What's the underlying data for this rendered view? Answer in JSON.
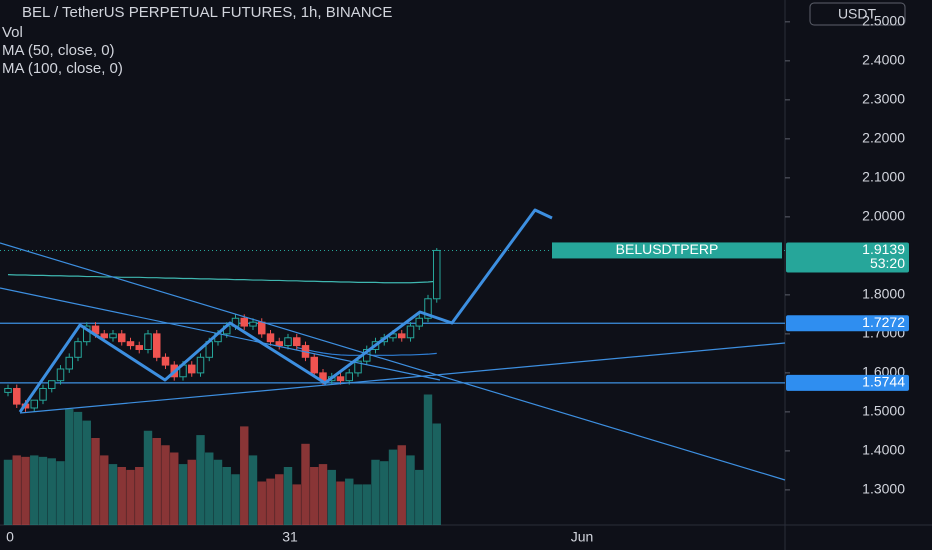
{
  "chart_data": {
    "type": "candlestick",
    "title": "BEL / TetherUS PERPETUAL FUTURES, 1h, BINANCE",
    "legend": [
      "Vol",
      "MA (50, close, 0)",
      "MA (100, close, 0)"
    ],
    "currency": "USDT",
    "symbol": "BELUSDTPERP",
    "countdown": "53:20",
    "xlabels": [
      "0",
      "31",
      "Jun"
    ],
    "up_color": "#26a69a",
    "down_color": "#ef5350",
    "ylim": [
      1.21,
      2.556
    ],
    "yticks": [
      {
        "value": 2.5,
        "label": "2.5000"
      },
      {
        "value": 2.4,
        "label": "2.4000"
      },
      {
        "value": 2.3,
        "label": "2.3000"
      },
      {
        "value": 2.2,
        "label": "2.2000"
      },
      {
        "value": 2.1,
        "label": "2.1000"
      },
      {
        "value": 2.0,
        "label": "2.0000"
      },
      {
        "value": 1.8,
        "label": "1.8000"
      },
      {
        "value": 1.7,
        "label": "1.7000"
      },
      {
        "value": 1.6,
        "label": "1.6000"
      },
      {
        "value": 1.5,
        "label": "1.5000"
      },
      {
        "value": 1.4,
        "label": "1.4000"
      },
      {
        "value": 1.3,
        "label": "1.3000"
      }
    ],
    "open": [
      1.55,
      1.56,
      1.52,
      1.51,
      1.53,
      1.56,
      1.58,
      1.61,
      1.64,
      1.68,
      1.72,
      1.7,
      1.69,
      1.7,
      1.68,
      1.67,
      1.66,
      1.7,
      1.64,
      1.62,
      1.59,
      1.62,
      1.6,
      1.64,
      1.68,
      1.7,
      1.72,
      1.74,
      1.72,
      1.73,
      1.7,
      1.68,
      1.67,
      1.69,
      1.67,
      1.64,
      1.6,
      1.58,
      1.59,
      1.58,
      1.6,
      1.63,
      1.66,
      1.68,
      1.69,
      1.7,
      1.69,
      1.72,
      1.74,
      1.79
    ],
    "high": [
      1.57,
      1.57,
      1.53,
      1.53,
      1.57,
      1.58,
      1.62,
      1.65,
      1.69,
      1.73,
      1.73,
      1.71,
      1.71,
      1.71,
      1.69,
      1.68,
      1.71,
      1.71,
      1.65,
      1.63,
      1.63,
      1.63,
      1.65,
      1.69,
      1.71,
      1.73,
      1.75,
      1.75,
      1.74,
      1.74,
      1.71,
      1.69,
      1.7,
      1.7,
      1.68,
      1.65,
      1.61,
      1.6,
      1.6,
      1.61,
      1.64,
      1.67,
      1.69,
      1.7,
      1.71,
      1.71,
      1.73,
      1.75,
      1.8,
      1.92
    ],
    "low": [
      1.54,
      1.51,
      1.5,
      1.5,
      1.52,
      1.55,
      1.57,
      1.6,
      1.63,
      1.67,
      1.69,
      1.68,
      1.68,
      1.67,
      1.66,
      1.65,
      1.65,
      1.63,
      1.61,
      1.58,
      1.58,
      1.59,
      1.59,
      1.63,
      1.67,
      1.69,
      1.71,
      1.71,
      1.71,
      1.69,
      1.67,
      1.66,
      1.66,
      1.66,
      1.63,
      1.59,
      1.57,
      1.57,
      1.57,
      1.57,
      1.59,
      1.62,
      1.65,
      1.67,
      1.68,
      1.68,
      1.68,
      1.71,
      1.73,
      1.78
    ],
    "close": [
      1.56,
      1.52,
      1.51,
      1.53,
      1.56,
      1.58,
      1.61,
      1.64,
      1.68,
      1.72,
      1.7,
      1.69,
      1.7,
      1.68,
      1.67,
      1.66,
      1.7,
      1.64,
      1.62,
      1.59,
      1.62,
      1.6,
      1.64,
      1.68,
      1.7,
      1.72,
      1.74,
      1.72,
      1.73,
      1.7,
      1.68,
      1.67,
      1.69,
      1.67,
      1.64,
      1.6,
      1.58,
      1.59,
      1.58,
      1.6,
      1.63,
      1.66,
      1.68,
      1.69,
      1.7,
      1.69,
      1.72,
      1.74,
      1.79,
      1.9139
    ],
    "volume": [
      45,
      48,
      47,
      48,
      47,
      46,
      44,
      80,
      78,
      72,
      60,
      48,
      42,
      40,
      38,
      40,
      65,
      60,
      55,
      50,
      42,
      45,
      62,
      50,
      45,
      40,
      35,
      68,
      48,
      30,
      32,
      35,
      40,
      28,
      56,
      40,
      42,
      38,
      30,
      32,
      28,
      28,
      45,
      44,
      52,
      55,
      48,
      38,
      90,
      70
    ],
    "vol_ylim": [
      0,
      100
    ],
    "series": [
      {
        "name": "MA (100, close, 0)",
        "color": "#3fb7b0",
        "values": [
          1.852,
          1.851,
          1.851,
          1.85,
          1.85,
          1.849,
          1.849,
          1.848,
          1.848,
          1.847,
          1.847,
          1.846,
          1.846,
          1.845,
          1.845,
          1.845,
          1.844,
          1.844,
          1.843,
          1.843,
          1.842,
          1.842,
          1.841,
          1.841,
          1.84,
          1.84,
          1.839,
          1.839,
          1.838,
          1.838,
          1.837,
          1.837,
          1.836,
          1.836,
          1.835,
          1.835,
          1.834,
          1.834,
          1.833,
          1.833,
          1.832,
          1.832,
          1.832,
          1.831,
          1.831,
          1.831,
          1.831,
          1.832,
          1.833,
          1.835
        ]
      },
      {
        "name": "MA (50, close, 0)",
        "color": "#2f7fd6",
        "values": [
          null,
          null,
          null,
          null,
          null,
          null,
          null,
          null,
          null,
          null,
          null,
          null,
          null,
          null,
          null,
          null,
          null,
          null,
          null,
          null,
          null,
          null,
          null,
          null,
          null,
          null,
          null,
          null,
          null,
          null,
          null,
          null,
          null,
          1.665,
          1.66,
          1.655,
          1.651,
          1.648,
          1.646,
          1.645,
          1.645,
          1.645,
          1.645,
          1.645,
          1.645,
          1.646,
          1.646,
          1.647,
          1.648,
          1.65
        ]
      }
    ],
    "levels": [
      {
        "value": 1.7272
      },
      {
        "value": 1.5744
      }
    ]
  }
}
